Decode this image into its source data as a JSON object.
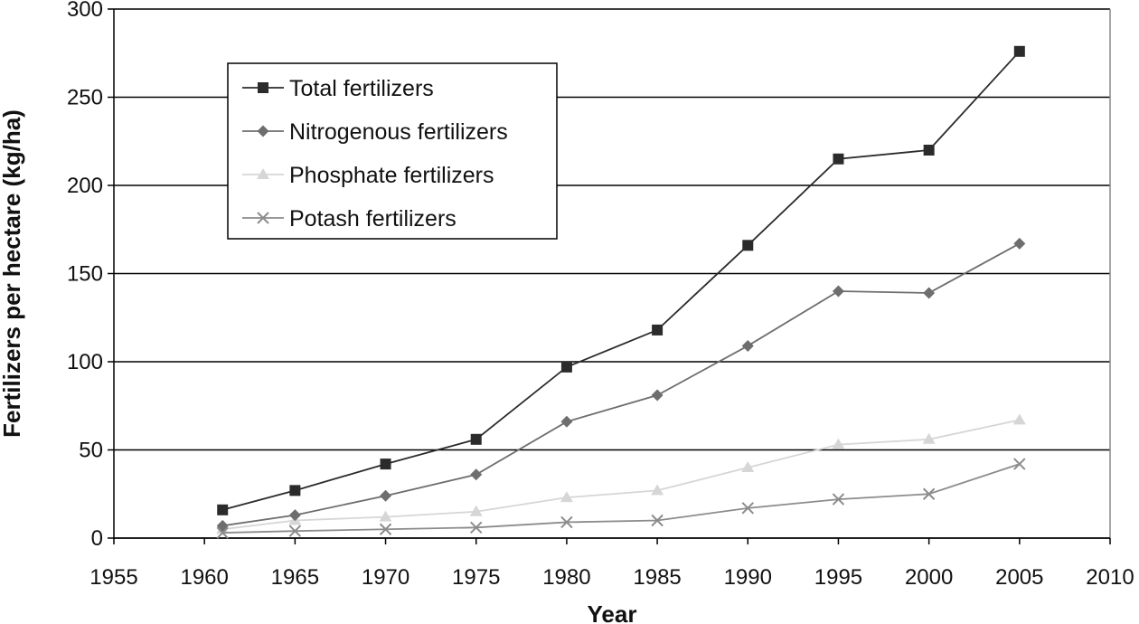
{
  "chart_data": {
    "type": "line",
    "title": "",
    "xlabel": "Year",
    "ylabel": "Fertilizers per hectare (kg/ha)",
    "xlim": [
      1955,
      2010
    ],
    "ylim": [
      0,
      300
    ],
    "x_ticks": [
      "1955",
      "1960",
      "1965",
      "1970",
      "1975",
      "1980",
      "1985",
      "1990",
      "1995",
      "2000",
      "2005",
      "2010"
    ],
    "y_ticks": [
      "0",
      "50",
      "100",
      "150",
      "200",
      "250",
      "300"
    ],
    "grid": "horizontal",
    "legend_position": "top-left",
    "x": [
      1961,
      1965,
      1970,
      1975,
      1980,
      1985,
      1990,
      1995,
      2000,
      2005
    ],
    "series": [
      {
        "name": "Total fertilizers",
        "marker": "square",
        "color": "#2b2b2b",
        "values": [
          16,
          27,
          42,
          56,
          97,
          118,
          166,
          215,
          220,
          276
        ]
      },
      {
        "name": "Nitrogenous fertilizers",
        "marker": "diamond",
        "color": "#6e6e6e",
        "values": [
          7,
          13,
          24,
          36,
          66,
          81,
          109,
          140,
          139,
          167
        ]
      },
      {
        "name": "Phosphate fertilizers",
        "marker": "triangle",
        "color": "#d6d6d6",
        "values": [
          5,
          10,
          12,
          15,
          23,
          27,
          40,
          53,
          56,
          67
        ]
      },
      {
        "name": "Potash fertilizers",
        "marker": "x",
        "color": "#8c8c8c",
        "values": [
          3,
          4,
          5,
          6,
          9,
          10,
          17,
          22,
          25,
          42
        ]
      }
    ]
  }
}
